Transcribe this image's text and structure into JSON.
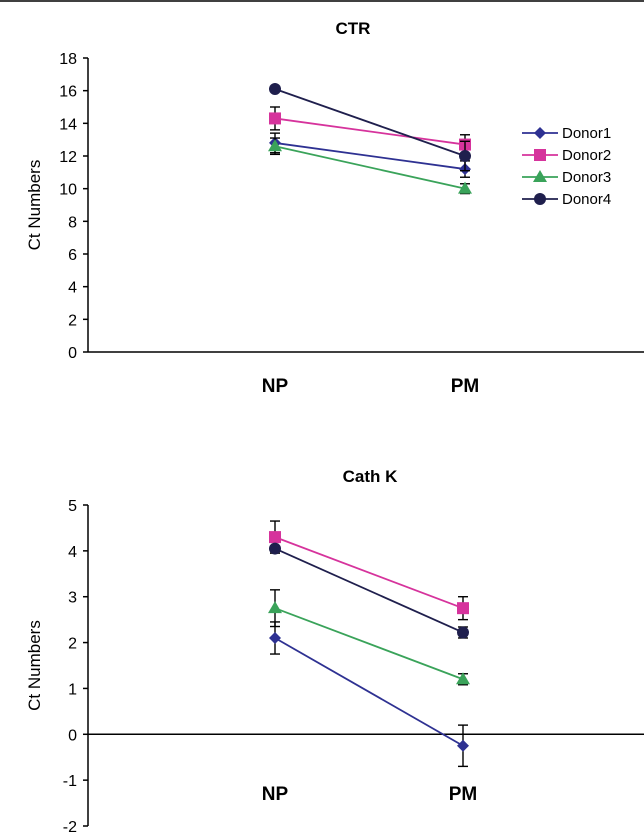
{
  "chart_data": [
    {
      "type": "line",
      "title": "CTR",
      "ylabel": "Ct Numbers",
      "xlabel": "",
      "categories": [
        "NP",
        "PM"
      ],
      "ylim": [
        0,
        18
      ],
      "yticks": [
        0,
        2,
        4,
        6,
        8,
        10,
        12,
        14,
        16,
        18
      ],
      "legend": "right",
      "series": [
        {
          "name": "Donor1",
          "color": "#2e3192",
          "marker": "diamond",
          "values": [
            12.8,
            11.2
          ],
          "errors": [
            0.6,
            0.5
          ]
        },
        {
          "name": "Donor2",
          "color": "#d6339c",
          "marker": "square",
          "values": [
            14.3,
            12.7
          ],
          "errors": [
            0.7,
            0.6
          ]
        },
        {
          "name": "Donor3",
          "color": "#3aa35a",
          "marker": "triangle",
          "values": [
            12.6,
            10.0
          ],
          "errors": [
            0.5,
            0.3
          ]
        },
        {
          "name": "Donor4",
          "color": "#1f1f4d",
          "marker": "circle",
          "values": [
            16.1,
            12.0
          ],
          "errors": [
            0.0,
            0.9
          ]
        }
      ]
    },
    {
      "type": "line",
      "title": "Cath K",
      "ylabel": "Ct Numbers",
      "xlabel": "",
      "categories": [
        "NP",
        "PM"
      ],
      "ylim": [
        -2,
        5
      ],
      "yticks": [
        -2,
        -1,
        0,
        1,
        2,
        3,
        4,
        5
      ],
      "legend": "none",
      "series": [
        {
          "name": "Donor1",
          "color": "#2e3192",
          "marker": "diamond",
          "values": [
            2.1,
            -0.25
          ],
          "errors": [
            0.35,
            0.45
          ]
        },
        {
          "name": "Donor2",
          "color": "#d6339c",
          "marker": "square",
          "values": [
            4.3,
            2.75
          ],
          "errors": [
            0.35,
            0.25
          ]
        },
        {
          "name": "Donor3",
          "color": "#3aa35a",
          "marker": "triangle",
          "values": [
            2.75,
            1.2
          ],
          "errors": [
            0.4,
            0.12
          ]
        },
        {
          "name": "Donor4",
          "color": "#1f1f4d",
          "marker": "circle",
          "values": [
            4.05,
            2.22
          ],
          "errors": [
            0.0,
            0.12
          ]
        }
      ]
    }
  ]
}
